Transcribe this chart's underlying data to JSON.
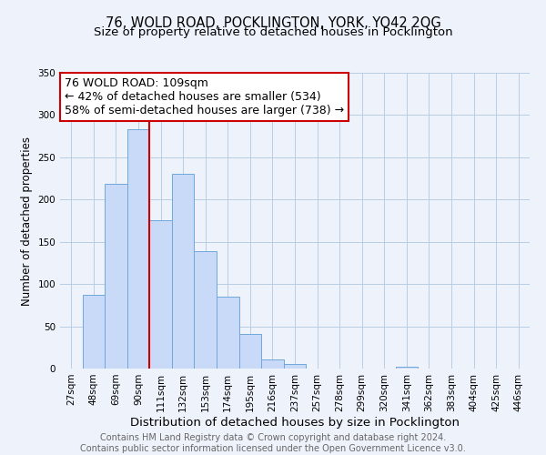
{
  "title": "76, WOLD ROAD, POCKLINGTON, YORK, YO42 2QG",
  "subtitle": "Size of property relative to detached houses in Pocklington",
  "xlabel": "Distribution of detached houses by size in Pocklington",
  "ylabel": "Number of detached properties",
  "bar_labels": [
    "27sqm",
    "48sqm",
    "69sqm",
    "90sqm",
    "111sqm",
    "132sqm",
    "153sqm",
    "174sqm",
    "195sqm",
    "216sqm",
    "237sqm",
    "257sqm",
    "278sqm",
    "299sqm",
    "320sqm",
    "341sqm",
    "362sqm",
    "383sqm",
    "404sqm",
    "425sqm",
    "446sqm"
  ],
  "bar_values": [
    0,
    87,
    219,
    283,
    175,
    230,
    139,
    85,
    41,
    11,
    5,
    0,
    0,
    0,
    0,
    2,
    0,
    0,
    0,
    0,
    0
  ],
  "bar_color": "#c9daf8",
  "bar_edgecolor": "#6fa8dc",
  "vline_color": "#cc0000",
  "annotation_title": "76 WOLD ROAD: 109sqm",
  "annotation_line1": "← 42% of detached houses are smaller (534)",
  "annotation_line2": "58% of semi-detached houses are larger (738) →",
  "annotation_box_color": "#ffffff",
  "annotation_box_edgecolor": "#cc0000",
  "ylim": [
    0,
    350
  ],
  "yticks": [
    0,
    50,
    100,
    150,
    200,
    250,
    300,
    350
  ],
  "grid_color": "#b8cce4",
  "footer1": "Contains HM Land Registry data © Crown copyright and database right 2024.",
  "footer2": "Contains public sector information licensed under the Open Government Licence v3.0.",
  "bg_color": "#eef2fb",
  "title_fontsize": 10.5,
  "subtitle_fontsize": 9.5,
  "xlabel_fontsize": 9.5,
  "ylabel_fontsize": 8.5,
  "tick_fontsize": 7.5,
  "annotation_fontsize": 9,
  "footer_fontsize": 7
}
